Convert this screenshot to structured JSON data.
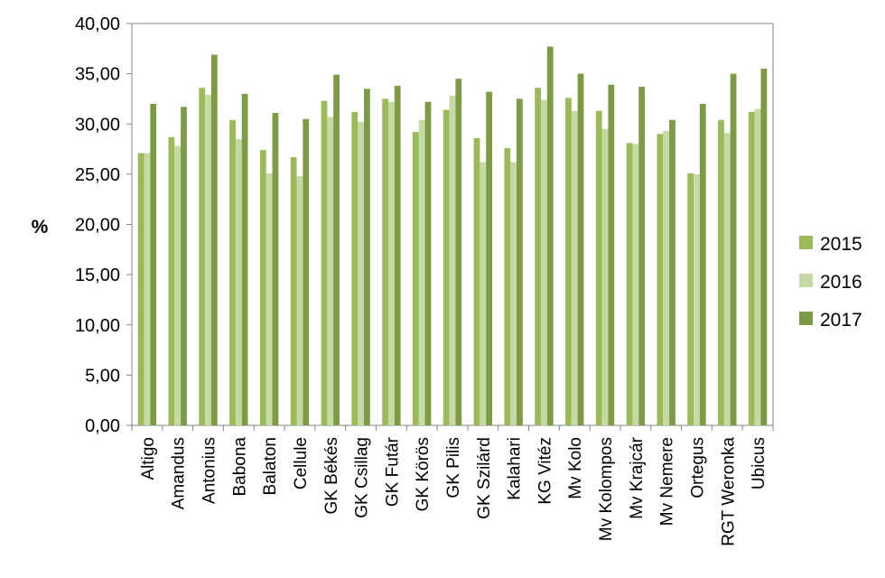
{
  "chart_data": {
    "type": "bar",
    "title": "",
    "xlabel": "",
    "ylabel": "%",
    "ylim": [
      0,
      40
    ],
    "yticks": [
      "0,00",
      "5,00",
      "10,00",
      "15,00",
      "20,00",
      "25,00",
      "30,00",
      "35,00",
      "40,00"
    ],
    "grid": false,
    "legend_position": "right",
    "categories": [
      "Altigo",
      "Amandus",
      "Antonius",
      "Babona",
      "Balaton",
      "Cellule",
      "GK Békés",
      "GK Csillag",
      "GK Futár",
      "GK Körös",
      "GK Pilis",
      "GK Szilárd",
      "Kalahari",
      "KG Vitéz",
      "Mv Kolo",
      "Mv Kolompos",
      "Mv Krajcár",
      "Mv Nemere",
      "Ortegus",
      "RGT Weronka",
      "Ubicus"
    ],
    "series": [
      {
        "name": "2015",
        "color": "#9bbb59",
        "values": [
          27.1,
          28.7,
          33.6,
          30.4,
          27.4,
          26.7,
          32.3,
          31.2,
          32.5,
          29.2,
          31.4,
          28.6,
          27.6,
          33.6,
          32.6,
          31.3,
          28.1,
          29.0,
          25.1,
          30.4,
          31.2
        ]
      },
      {
        "name": "2016",
        "color": "#c5d9a5",
        "values": [
          27.1,
          27.8,
          32.9,
          28.5,
          25.1,
          24.8,
          30.7,
          30.2,
          32.2,
          30.4,
          32.8,
          26.2,
          26.2,
          32.4,
          31.3,
          29.5,
          28.0,
          29.3,
          25.0,
          29.1,
          31.5
        ]
      },
      {
        "name": "2017",
        "color": "#7d9b45",
        "values": [
          32.0,
          31.7,
          36.9,
          33.0,
          31.1,
          30.5,
          34.9,
          33.5,
          33.8,
          32.2,
          34.5,
          33.2,
          32.5,
          37.7,
          35.0,
          33.9,
          33.7,
          30.4,
          32.0,
          35.0,
          35.5
        ]
      }
    ]
  }
}
